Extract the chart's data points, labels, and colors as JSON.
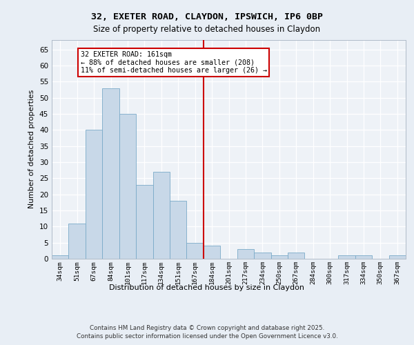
{
  "title_line1": "32, EXETER ROAD, CLAYDON, IPSWICH, IP6 0BP",
  "title_line2": "Size of property relative to detached houses in Claydon",
  "xlabel": "Distribution of detached houses by size in Claydon",
  "ylabel": "Number of detached properties",
  "categories": [
    "34sqm",
    "51sqm",
    "67sqm",
    "84sqm",
    "101sqm",
    "117sqm",
    "134sqm",
    "151sqm",
    "167sqm",
    "184sqm",
    "201sqm",
    "217sqm",
    "234sqm",
    "250sqm",
    "267sqm",
    "284sqm",
    "300sqm",
    "317sqm",
    "334sqm",
    "350sqm",
    "367sqm"
  ],
  "values": [
    1,
    11,
    40,
    53,
    45,
    23,
    27,
    18,
    5,
    4,
    0,
    3,
    2,
    1,
    2,
    0,
    0,
    1,
    1,
    0,
    1
  ],
  "bar_color": "#c8d8e8",
  "bar_edge_color": "#7aaac8",
  "reference_line_x": 8.5,
  "annotation_title": "32 EXETER ROAD: 161sqm",
  "annotation_line1": "← 88% of detached houses are smaller (208)",
  "annotation_line2": "11% of semi-detached houses are larger (26) →",
  "annotation_box_color": "#ffffff",
  "annotation_box_edge": "#cc0000",
  "ylim": [
    0,
    68
  ],
  "yticks": [
    0,
    5,
    10,
    15,
    20,
    25,
    30,
    35,
    40,
    45,
    50,
    55,
    60,
    65
  ],
  "bg_color": "#e8eef5",
  "plot_bg_color": "#eef2f7",
  "footer_line1": "Contains HM Land Registry data © Crown copyright and database right 2025.",
  "footer_line2": "Contains public sector information licensed under the Open Government Licence v3.0."
}
